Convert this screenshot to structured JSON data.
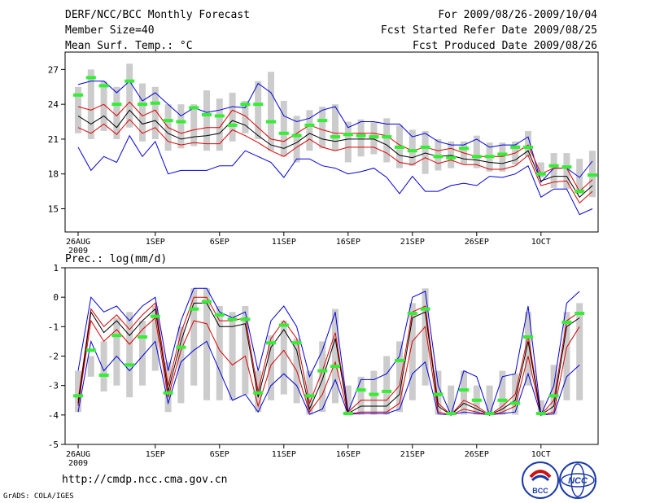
{
  "header": {
    "title": "DERF/NCC/BCC Monthly Forecast",
    "member_size": "Member Size=40",
    "variable": "Mean Surf. Temp.: °C",
    "period": "For 2009/08/26-2009/10/04",
    "refer_date": "Fcst Started Refer Date 2009/08/25",
    "produced_date": "Fcst Produced Date 2009/08/26"
  },
  "footer": {
    "url": "http://cmdp.ncc.cma.gov.cn",
    "credit": "GrADS: COLA/IGES",
    "logo_left": "BCC",
    "logo_right": "NCC"
  },
  "colors": {
    "envelope": "#0000dd",
    "spread": "#dd0000",
    "mean": "#000000",
    "box": "#cccccc",
    "marker": "#33ee33"
  },
  "chart_data": [
    {
      "type": "line",
      "title": "Mean Surf. Temp.: °C",
      "ylabel": "°C",
      "ylim": [
        13,
        28.5
      ],
      "yticks": [
        15,
        18,
        21,
        24,
        27
      ],
      "xticks": [
        {
          "day": 0,
          "label": "26AUG",
          "sub": "2009"
        },
        {
          "day": 6,
          "label": "1SEP"
        },
        {
          "day": 11,
          "label": "6SEP"
        },
        {
          "day": 16,
          "label": "11SEP"
        },
        {
          "day": 21,
          "label": "16SEP"
        },
        {
          "day": 26,
          "label": "21SEP"
        },
        {
          "day": 31,
          "label": "26SEP"
        },
        {
          "day": 36,
          "label": "1OCT"
        }
      ],
      "max": [
        25.7,
        26.0,
        26.0,
        25.0,
        26.0,
        24.3,
        25.0,
        24.0,
        23.0,
        23.7,
        23.3,
        23.5,
        23.8,
        23.7,
        25.8,
        25.0,
        23.0,
        22.5,
        22.8,
        23.5,
        23.8,
        22.0,
        22.5,
        22.5,
        22.3,
        22.3,
        21.2,
        21.5,
        20.8,
        20.5,
        20.5,
        21.0,
        20.3,
        20.5,
        20.5,
        21.2,
        17.3,
        18.5,
        18.5,
        17.7,
        19.1
      ],
      "upper": [
        23.8,
        23.5,
        24.0,
        23.0,
        24.2,
        23.0,
        23.5,
        22.0,
        21.5,
        21.8,
        22.0,
        22.0,
        23.5,
        23.0,
        22.0,
        21.0,
        20.8,
        21.5,
        22.2,
        21.8,
        21.5,
        21.5,
        21.5,
        21.5,
        21.3,
        20.5,
        20.0,
        20.3,
        20.0,
        20.2,
        19.8,
        19.5,
        19.5,
        19.5,
        19.8,
        20.5,
        18.0,
        18.5,
        18.5,
        16.5,
        17.5
      ],
      "mean": [
        23.0,
        22.3,
        23.0,
        22.0,
        23.5,
        22.3,
        22.6,
        21.5,
        21.0,
        21.2,
        21.3,
        21.5,
        22.6,
        22.2,
        21.3,
        20.5,
        20.2,
        20.7,
        21.5,
        21.0,
        20.8,
        21.0,
        21.0,
        21.0,
        20.5,
        19.6,
        19.4,
        19.8,
        19.5,
        19.6,
        19.3,
        19.2,
        19.0,
        18.9,
        19.2,
        20.0,
        17.4,
        17.8,
        17.8,
        16.0,
        17.0
      ],
      "lower": [
        22.0,
        21.5,
        22.3,
        21.4,
        22.7,
        21.5,
        22.0,
        20.8,
        20.5,
        20.7,
        20.6,
        20.6,
        21.8,
        21.3,
        20.7,
        20.0,
        19.5,
        20.3,
        21.0,
        20.3,
        20.0,
        20.3,
        20.3,
        20.3,
        19.8,
        19.0,
        18.8,
        19.4,
        18.9,
        19.2,
        18.8,
        18.8,
        18.4,
        18.4,
        18.7,
        19.6,
        17.0,
        17.3,
        17.4,
        15.5,
        16.5
      ],
      "min": [
        20.3,
        18.3,
        19.5,
        19.0,
        21.3,
        19.5,
        20.8,
        18.0,
        18.3,
        18.3,
        18.3,
        18.7,
        18.7,
        20.0,
        19.5,
        19.0,
        17.7,
        19.3,
        19.3,
        18.7,
        18.5,
        18.0,
        18.2,
        18.5,
        17.7,
        16.3,
        17.8,
        16.5,
        16.5,
        17.0,
        17.2,
        17.0,
        17.8,
        17.7,
        18.0,
        18.7,
        16.0,
        16.7,
        16.7,
        14.5,
        15.0
      ],
      "box_hi": [
        25.5,
        27.0,
        26.0,
        25.5,
        27.5,
        25.8,
        25.5,
        24.0,
        24.0,
        24.0,
        25.2,
        24.5,
        25.0,
        24.3,
        26.0,
        26.8,
        24.3,
        23.0,
        23.5,
        23.8,
        24.0,
        22.5,
        22.7,
        22.5,
        22.8,
        22.2,
        21.8,
        21.7,
        21.0,
        20.8,
        20.8,
        21.3,
        20.7,
        20.7,
        20.8,
        21.7,
        19.0,
        19.8,
        19.8,
        19.3,
        20.0
      ],
      "box_lo": [
        21.5,
        21.0,
        21.7,
        21.0,
        22.0,
        20.8,
        21.0,
        20.0,
        20.2,
        20.4,
        20.0,
        20.0,
        20.8,
        21.5,
        21.0,
        20.0,
        19.5,
        19.0,
        20.0,
        20.2,
        20.0,
        19.0,
        19.5,
        19.7,
        19.0,
        18.5,
        18.7,
        18.0,
        18.3,
        18.5,
        18.8,
        18.5,
        18.2,
        18.2,
        18.8,
        19.5,
        17.7,
        16.8,
        16.7,
        16.3,
        16.0
      ],
      "marker": [
        24.8,
        26.3,
        25.6,
        24.0,
        26.0,
        24.0,
        24.1,
        22.6,
        22.5,
        23.7,
        23.1,
        23.0,
        22.2,
        24.0,
        24.0,
        22.5,
        21.5,
        21.3,
        22.2,
        22.6,
        21.2,
        21.4,
        21.3,
        21.2,
        21.2,
        20.3,
        20.0,
        20.3,
        19.5,
        19.4,
        20.2,
        19.5,
        19.5,
        19.7,
        20.3,
        20.3,
        18.0,
        18.7,
        18.6,
        16.5,
        17.9
      ]
    },
    {
      "type": "line",
      "title": "Prec.: log(mm/d)",
      "ylabel": "log(mm/d)",
      "ylim": [
        -5,
        1
      ],
      "yticks": [
        -5,
        -4,
        -3,
        -2,
        -1,
        0,
        1
      ],
      "xticks": [
        {
          "day": 0,
          "label": "26AUG",
          "sub": "2009"
        },
        {
          "day": 6,
          "label": "1SEP"
        },
        {
          "day": 11,
          "label": "6SEP"
        },
        {
          "day": 16,
          "label": "11SEP"
        },
        {
          "day": 21,
          "label": "16SEP"
        },
        {
          "day": 26,
          "label": "21SEP"
        },
        {
          "day": 31,
          "label": "26SEP"
        },
        {
          "day": 36,
          "label": "1OCT"
        }
      ],
      "max": [
        -2.5,
        0.0,
        -0.5,
        -0.3,
        -0.8,
        -0.3,
        0.0,
        -2.5,
        -0.8,
        0.3,
        0.3,
        -0.5,
        -0.7,
        -0.5,
        -2.5,
        -0.8,
        -0.3,
        -1.0,
        -2.7,
        -1.8,
        -0.5,
        -3.9,
        -2.8,
        -2.8,
        -2.6,
        -2.0,
        0.0,
        0.2,
        -3.0,
        -4.0,
        -2.5,
        -2.7,
        -4.0,
        -2.7,
        -2.6,
        -0.3,
        -4.0,
        -3.0,
        -0.2,
        0.2
      ],
      "upper": [
        -3.5,
        -0.4,
        -1.0,
        -0.6,
        -1.1,
        -0.6,
        -0.2,
        -3.0,
        -1.2,
        0.0,
        0.0,
        -0.8,
        -0.8,
        -0.7,
        -3.2,
        -1.4,
        -0.8,
        -1.4,
        -3.6,
        -2.5,
        -1.2,
        -3.9,
        -3.5,
        -3.5,
        -3.5,
        -3.0,
        -0.5,
        -0.3,
        -3.6,
        -4.0,
        -3.5,
        -3.7,
        -4.0,
        -3.7,
        -3.3,
        -1.3,
        -4.0,
        -3.5,
        -0.8,
        -0.5
      ],
      "mean": [
        -3.6,
        -0.5,
        -1.2,
        -0.8,
        -1.3,
        -0.8,
        -0.4,
        -3.2,
        -1.5,
        -0.2,
        -0.2,
        -1.0,
        -1.0,
        -0.9,
        -3.4,
        -1.7,
        -1.1,
        -1.8,
        -3.8,
        -2.8,
        -1.4,
        -3.95,
        -3.7,
        -3.7,
        -3.7,
        -3.3,
        -0.7,
        -0.5,
        -3.7,
        -4.0,
        -3.6,
        -3.8,
        -4.0,
        -3.8,
        -3.5,
        -1.5,
        -4.0,
        -3.7,
        -1.0,
        -0.7
      ],
      "lower": [
        -3.7,
        -0.8,
        -1.5,
        -1.1,
        -1.6,
        -1.1,
        -0.7,
        -3.4,
        -1.8,
        -0.8,
        -0.9,
        -1.8,
        -2.3,
        -2.0,
        -3.7,
        -2.3,
        -1.8,
        -2.5,
        -3.9,
        -3.3,
        -2.2,
        -3.97,
        -3.9,
        -3.9,
        -3.9,
        -3.6,
        -1.5,
        -1.0,
        -3.9,
        -4.0,
        -3.8,
        -3.9,
        -4.0,
        -3.9,
        -3.7,
        -2.0,
        -4.0,
        -3.9,
        -1.7,
        -1.0
      ],
      "min": [
        -3.9,
        -1.5,
        -2.5,
        -2.0,
        -2.5,
        -2.0,
        -1.5,
        -3.6,
        -2.2,
        -1.8,
        -1.5,
        -2.5,
        -3.5,
        -3.3,
        -3.9,
        -3.0,
        -2.6,
        -3.0,
        -3.98,
        -3.8,
        -2.8,
        -3.98,
        -3.95,
        -3.95,
        -3.95,
        -3.8,
        -2.6,
        -2.2,
        -3.97,
        -4.0,
        -3.9,
        -3.95,
        -4.0,
        -3.95,
        -3.9,
        -2.6,
        -4.0,
        -3.97,
        -2.7,
        -2.3
      ],
      "box_hi": [
        -2.5,
        -2.0,
        -1.5,
        -0.7,
        -0.5,
        -0.8,
        -0.3,
        -2.2,
        -1.0,
        0.3,
        0.3,
        -0.3,
        -0.5,
        -0.3,
        -2.5,
        -1.3,
        -0.8,
        -1.4,
        -2.5,
        -1.5,
        -0.4,
        -3.0,
        -2.7,
        -2.5,
        -2.0,
        -1.5,
        -0.2,
        0.3,
        -2.5,
        -3.0,
        -2.5,
        -3.0,
        -3.0,
        -2.5,
        -2.6,
        -0.5,
        -3.5,
        -2.3,
        -0.5,
        -0.2
      ],
      "box_lo": [
        -3.9,
        -2.7,
        -3.2,
        -3.0,
        -3.4,
        -3.0,
        -2.5,
        -3.9,
        -3.6,
        -3.0,
        -3.5,
        -3.5,
        -3.5,
        -3.3,
        -3.9,
        -3.5,
        -3.3,
        -3.6,
        -3.99,
        -3.9,
        -3.6,
        -3.99,
        -3.99,
        -3.99,
        -3.99,
        -3.9,
        -3.5,
        -3.0,
        -3.99,
        -4.0,
        -3.99,
        -3.99,
        -4.0,
        -3.99,
        -3.99,
        -3.0,
        -4.0,
        -3.99,
        -3.5,
        -3.5
      ],
      "marker": [
        -3.35,
        -1.8,
        -2.65,
        -1.3,
        -2.3,
        -1.35,
        -0.65,
        -3.25,
        -1.7,
        -0.4,
        -0.15,
        -0.6,
        -0.75,
        -0.75,
        -3.25,
        -1.55,
        -0.95,
        -1.55,
        -3.35,
        -2.5,
        -2.35,
        -3.95,
        -3.15,
        -3.3,
        -3.2,
        -2.15,
        -0.55,
        -0.4,
        -3.3,
        -3.95,
        -3.15,
        -3.5,
        -3.95,
        -3.5,
        -3.6,
        -1.35,
        -3.95,
        -3.35,
        -0.85,
        -0.55
      ]
    }
  ]
}
